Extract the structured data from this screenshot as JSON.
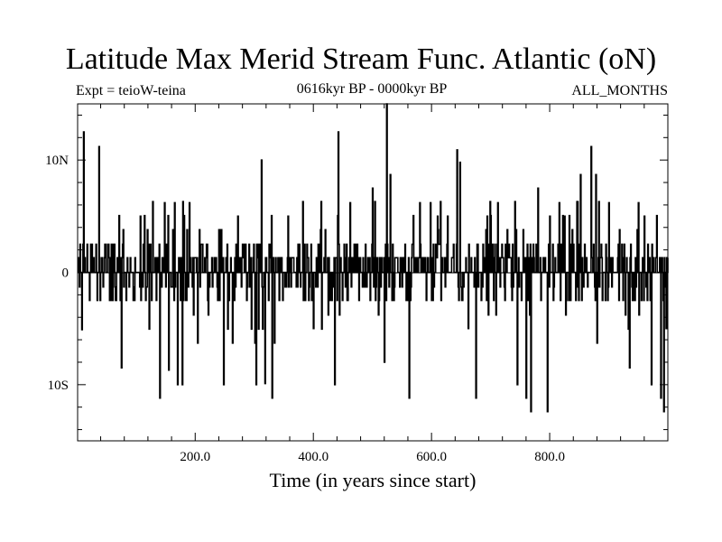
{
  "chart_data": {
    "type": "line",
    "title": "Latitude Max Merid Stream Func. Atlantic (oN)",
    "subtitle_left": "Expt = teioW-teina",
    "subtitle_center": "0616kyr BP - 0000kyr BP",
    "subtitle_right": "ALL_MONTHS",
    "xlabel": "Time (in years since start)",
    "ylabel": "",
    "xlim": [
      1,
      1000
    ],
    "ylim": [
      -15,
      15
    ],
    "x_ticks": [
      200,
      400,
      600,
      800
    ],
    "x_tick_labels": [
      "200.0",
      "400.0",
      "600.0",
      "800.0"
    ],
    "y_ticks": [
      10,
      0,
      -10
    ],
    "y_tick_labels": [
      "10N",
      "0",
      "10S"
    ],
    "baseline": 0,
    "peak_events": [
      {
        "x": 5,
        "y": 2.5
      },
      {
        "x": 8,
        "y": -5.1
      },
      {
        "x": 11,
        "y": 12.5
      },
      {
        "x": 37,
        "y": 11.2
      },
      {
        "x": 75,
        "y": -8.5
      },
      {
        "x": 78,
        "y": 3.8
      },
      {
        "x": 107,
        "y": 5
      },
      {
        "x": 140,
        "y": -11.2
      },
      {
        "x": 148,
        "y": 6.2
      },
      {
        "x": 155,
        "y": -8.7
      },
      {
        "x": 165,
        "y": 6.2
      },
      {
        "x": 170,
        "y": -10
      },
      {
        "x": 178,
        "y": -10
      },
      {
        "x": 190,
        "y": 6.2
      },
      {
        "x": 240,
        "y": 3.8
      },
      {
        "x": 248,
        "y": -10
      },
      {
        "x": 272,
        "y": 5
      },
      {
        "x": 303,
        "y": -10
      },
      {
        "x": 312,
        "y": 10
      },
      {
        "x": 318,
        "y": -9.9
      },
      {
        "x": 330,
        "y": -11.2
      },
      {
        "x": 357,
        "y": 5
      },
      {
        "x": 400,
        "y": -5
      },
      {
        "x": 420,
        "y": 3.8
      },
      {
        "x": 436,
        "y": -10
      },
      {
        "x": 442,
        "y": 12.5
      },
      {
        "x": 462,
        "y": 6.2
      },
      {
        "x": 500,
        "y": 7.5
      },
      {
        "x": 510,
        "y": -3.8
      },
      {
        "x": 520,
        "y": -8
      },
      {
        "x": 524,
        "y": 15
      },
      {
        "x": 530,
        "y": 8.7
      },
      {
        "x": 555,
        "y": 2.5
      },
      {
        "x": 562,
        "y": -11.2
      },
      {
        "x": 580,
        "y": 6.2
      },
      {
        "x": 598,
        "y": 6.2
      },
      {
        "x": 610,
        "y": 5
      },
      {
        "x": 627,
        "y": 5
      },
      {
        "x": 643,
        "y": 10.9
      },
      {
        "x": 648,
        "y": 9.8
      },
      {
        "x": 662,
        "y": -5
      },
      {
        "x": 675,
        "y": -11.2
      },
      {
        "x": 694,
        "y": 5
      },
      {
        "x": 712,
        "y": 6.2
      },
      {
        "x": 728,
        "y": 3.8
      },
      {
        "x": 745,
        "y": -10
      },
      {
        "x": 760,
        "y": -11.2
      },
      {
        "x": 768,
        "y": -12.4
      },
      {
        "x": 780,
        "y": 7.5
      },
      {
        "x": 796,
        "y": -12.4
      },
      {
        "x": 800,
        "y": 5
      },
      {
        "x": 816,
        "y": 6.2
      },
      {
        "x": 825,
        "y": 5
      },
      {
        "x": 838,
        "y": 3.8
      },
      {
        "x": 852,
        "y": 8.7
      },
      {
        "x": 870,
        "y": 11.2
      },
      {
        "x": 878,
        "y": 8.7
      },
      {
        "x": 900,
        "y": 6.2
      },
      {
        "x": 918,
        "y": 3.8
      },
      {
        "x": 935,
        "y": -8.5
      },
      {
        "x": 950,
        "y": 6.2
      },
      {
        "x": 960,
        "y": 5
      },
      {
        "x": 972,
        "y": -10
      },
      {
        "x": 988,
        "y": -11.2
      },
      {
        "x": 993,
        "y": -12.4
      },
      {
        "x": 997,
        "y": -5
      }
    ]
  }
}
